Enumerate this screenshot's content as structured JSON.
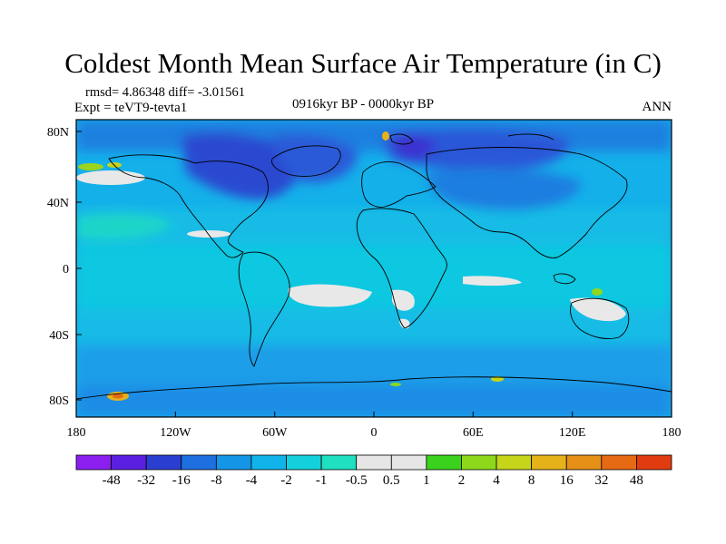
{
  "title": "Coldest Month Mean Surface Air Temperature (in C)",
  "stats": "rmsd= 4.86348  diff= -3.01561",
  "expt": "Expt = teVT9-tevta1",
  "period": "0916kyr BP - 0000kyr BP",
  "season": "ANN",
  "lat_ticks": [
    "80N",
    "40N",
    "0",
    "40S",
    "80S"
  ],
  "lon_ticks": [
    "180",
    "120W",
    "60W",
    "0",
    "60E",
    "120E",
    "180"
  ],
  "colorbar": {
    "labels": [
      "-48",
      "-32",
      "-16",
      "-8",
      "-4",
      "-2",
      "-1",
      "-0.5",
      "0.5",
      "1",
      "2",
      "4",
      "8",
      "16",
      "32",
      "48"
    ],
    "colors": [
      "#8a1ff0",
      "#5a1fe0",
      "#2a3fd0",
      "#1e6fe0",
      "#1495e6",
      "#10b4ea",
      "#14d0dc",
      "#1fe0c0",
      "#e6e6e6",
      "#3ad21c",
      "#8ed81c",
      "#c6d41a",
      "#e6b21a",
      "#e69018",
      "#e66a14",
      "#e03c10"
    ]
  }
}
